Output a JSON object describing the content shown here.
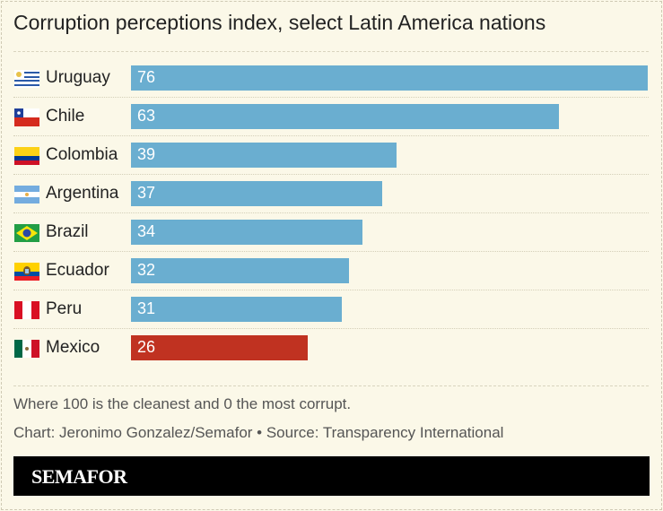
{
  "chart_data": {
    "type": "bar",
    "orientation": "horizontal",
    "title": "Corruption perceptions index, select Latin America nations",
    "categories": [
      "Uruguay",
      "Chile",
      "Colombia",
      "Argentina",
      "Brazil",
      "Ecuador",
      "Peru",
      "Mexico"
    ],
    "values": [
      76,
      63,
      39,
      37,
      34,
      32,
      31,
      26
    ],
    "flags": [
      "uruguay-flag",
      "chile-flag",
      "colombia-flag",
      "argentina-flag",
      "brazil-flag",
      "ecuador-flag",
      "peru-flag",
      "mexico-flag"
    ],
    "highlight": "Mexico",
    "colors": {
      "default": "#6aaed0",
      "highlight": "#c03221"
    },
    "xlim": [
      0,
      76
    ],
    "grid": false
  },
  "notes": {
    "description": "Where 100 is the cleanest and 0 the most corrupt.",
    "credit": "Chart: Jeronimo Gonzalez/Semafor • Source: Transparency International"
  },
  "logo": "SEMAFOR"
}
